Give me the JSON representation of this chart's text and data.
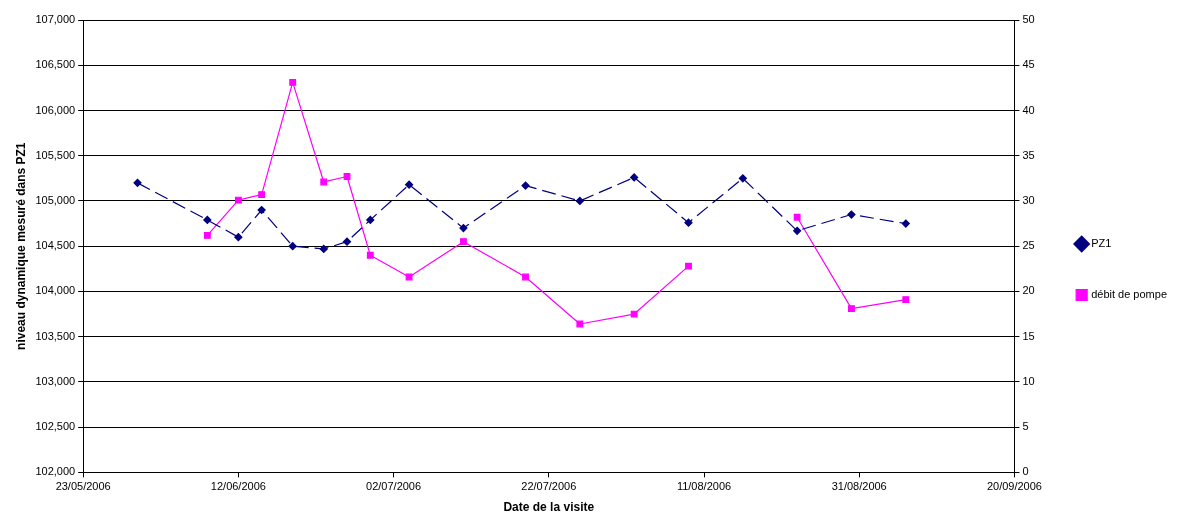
{
  "chart_data": {
    "type": "line",
    "xlabel": "Date de la visite",
    "ylabel": "niveau dynamique mesuré dans PZ1",
    "xlim": [
      "2006-05-23",
      "2006-09-20"
    ],
    "xticks": [
      {
        "value": "2006-05-23",
        "label": "23/05/2006"
      },
      {
        "value": "2006-06-12",
        "label": "12/06/2006"
      },
      {
        "value": "2006-07-02",
        "label": "02/07/2006"
      },
      {
        "value": "2006-07-22",
        "label": "22/07/2006"
      },
      {
        "value": "2006-08-11",
        "label": "11/08/2006"
      },
      {
        "value": "2006-08-31",
        "label": "31/08/2006"
      },
      {
        "value": "2006-09-20",
        "label": "20/09/2006"
      }
    ],
    "ylim": [
      102000,
      107000
    ],
    "yticks": [
      {
        "value": 102000,
        "label": "102,000"
      },
      {
        "value": 102500,
        "label": "102,500"
      },
      {
        "value": 103000,
        "label": "103,000"
      },
      {
        "value": 103500,
        "label": "103,500"
      },
      {
        "value": 104000,
        "label": "104,000"
      },
      {
        "value": 104500,
        "label": "104,500"
      },
      {
        "value": 105000,
        "label": "105,000"
      },
      {
        "value": 105500,
        "label": "105,500"
      },
      {
        "value": 106000,
        "label": "106,000"
      },
      {
        "value": 106500,
        "label": "106,500"
      },
      {
        "value": 107000,
        "label": "107,000"
      }
    ],
    "y2lim": [
      0,
      50
    ],
    "y2ticks": [
      0,
      5,
      10,
      15,
      20,
      25,
      30,
      35,
      40,
      45,
      50
    ],
    "grid": "y",
    "legend": "right",
    "series": [
      {
        "name": "PZ1",
        "color": "#000080",
        "marker": "diamond",
        "line_style": "dashed",
        "x": [
          "2006-05-30",
          "2006-06-08",
          "2006-06-12",
          "2006-06-15",
          "2006-06-19",
          "2006-06-23",
          "2006-06-26",
          "2006-06-29",
          "2006-07-04",
          "2006-07-11",
          "2006-07-19",
          "2006-07-26",
          "2006-08-02",
          "2006-08-09",
          "2006-08-16",
          "2006-08-23",
          "2006-08-30",
          "2006-09-06"
        ],
        "values": [
          105200,
          104790,
          104600,
          104900,
          104500,
          104470,
          104550,
          104790,
          105180,
          104700,
          105170,
          105000,
          105260,
          104760,
          105250,
          104670,
          104850,
          104750
        ]
      },
      {
        "name": "débit de pompe",
        "color": "#ff00ff",
        "marker": "square",
        "line_style": "solid",
        "axis": "y2",
        "x": [
          "2006-06-08",
          "2006-06-12",
          "2006-06-15",
          "2006-06-19",
          "2006-06-23",
          "2006-06-26",
          "2006-06-29",
          "2006-07-04",
          "2006-07-11",
          "2006-07-19",
          "2006-07-26",
          "2006-08-02",
          "2006-08-09",
          "2006-08-16",
          "2006-08-23",
          "2006-08-30",
          "2006-09-06"
        ],
        "values": [
          26.2,
          30.1,
          30.7,
          43.1,
          32.1,
          32.7,
          24.0,
          21.6,
          25.5,
          21.6,
          16.4,
          17.5,
          22.8,
          null,
          28.2,
          18.1,
          19.1
        ]
      }
    ]
  }
}
